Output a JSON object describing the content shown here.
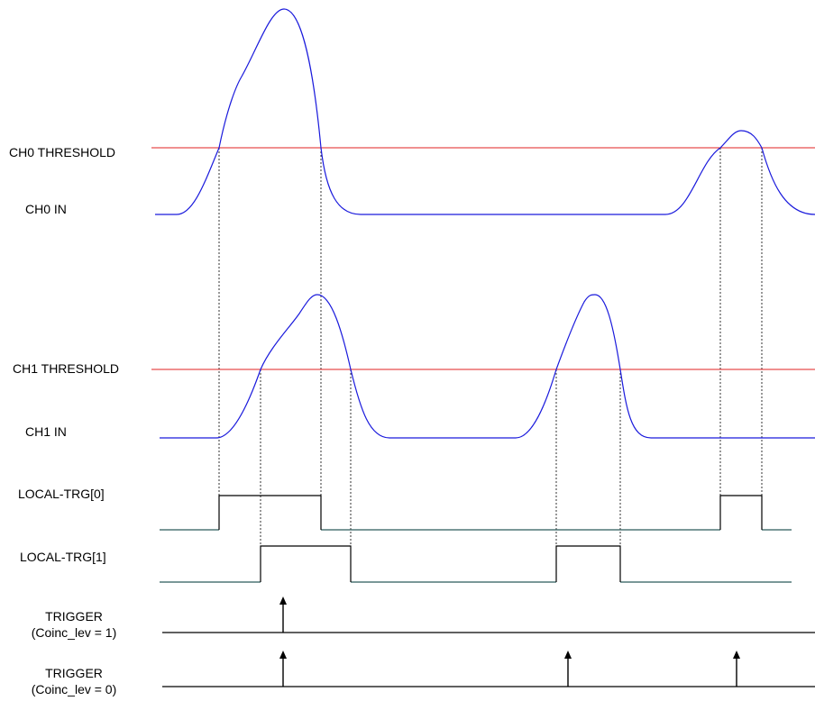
{
  "labels": {
    "ch0_threshold": "CH0 THRESHOLD",
    "ch0_in": "CH0 IN",
    "ch1_threshold": "CH1 THRESHOLD",
    "ch1_in": "CH1 IN",
    "local_trg_0": "LOCAL-TRG[0]",
    "local_trg_1": "LOCAL-TRG[1]",
    "trigger_1_title": "TRIGGER",
    "trigger_1_sub": "(Coinc_lev = 1)",
    "trigger_0_title": "TRIGGER",
    "trigger_0_sub": "(Coinc_lev = 0)"
  },
  "colors": {
    "threshold": "#e02020",
    "signal": "#1a1adc",
    "trigger_low": "#2a5a5a",
    "trigger_high": "#000000",
    "guides": "#000000"
  }
}
